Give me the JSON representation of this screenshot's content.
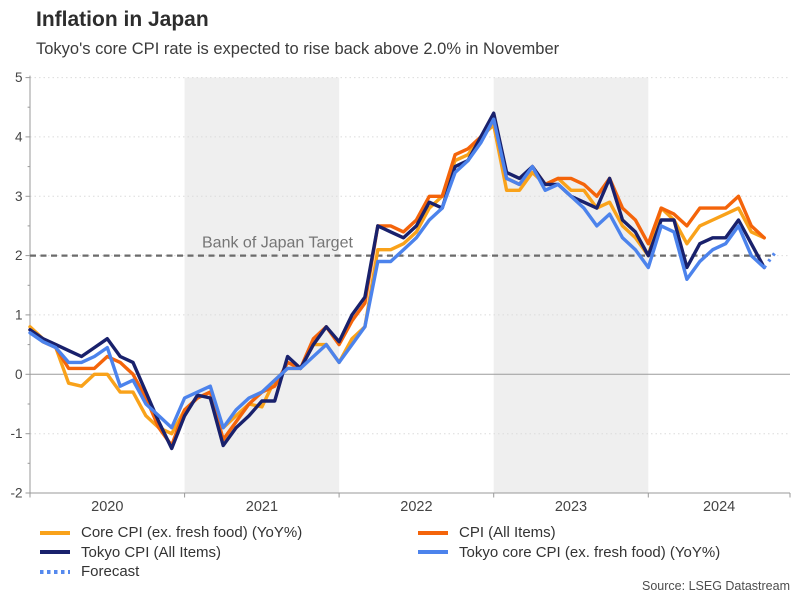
{
  "header": {
    "title": "Inflation in Japan",
    "subtitle": "Tokyo's core CPI rate is expected to rise back above 2.0% in November"
  },
  "source": "Source: LSEG Datastream",
  "legend": {
    "items": [
      {
        "label": "Core CPI (ex. fresh food) (YoY%)",
        "color": "#F9A21A",
        "style": "solid"
      },
      {
        "label": "CPI (All Items)",
        "color": "#F4640A",
        "style": "solid"
      },
      {
        "label": "Tokyo CPI (All Items)",
        "color": "#19216C",
        "style": "solid"
      },
      {
        "label": "Tokyo core CPI (ex. fresh food) (YoY%)",
        "color": "#4C83EC",
        "style": "solid"
      },
      {
        "label": "Forecast",
        "color": "#5589EE",
        "style": "dotted"
      }
    ]
  },
  "chart_data": {
    "type": "line",
    "title": "Inflation in Japan",
    "subtitle": "Tokyo's core CPI rate is expected to rise back above 2.0% in November",
    "x_unit": "month",
    "start_month": "2020-01",
    "x_axis": {
      "year_labels": [
        "2020",
        "2021",
        "2022",
        "2023",
        "2024"
      ],
      "year_tick_month_indices": [
        0,
        12,
        24,
        36,
        48,
        59
      ]
    },
    "y_axis": {
      "min": -2,
      "max": 5,
      "ticks": [
        5,
        4,
        3,
        2,
        1,
        0,
        -1,
        -2
      ],
      "minor_tick_step": 0.5
    },
    "shaded_bands_month_ranges": [
      [
        12,
        24
      ],
      [
        36,
        48
      ]
    ],
    "target_line": {
      "value": 2.0,
      "label": "Bank of Japan Target"
    },
    "series": [
      {
        "name": "Core CPI (ex. fresh food) (YoY%)",
        "color": "#F9A21A",
        "values": [
          0.8,
          0.6,
          0.45,
          -0.15,
          -0.2,
          0.0,
          0.0,
          -0.3,
          -0.3,
          -0.7,
          -0.9,
          -1.0,
          -0.6,
          -0.4,
          -0.3,
          -0.9,
          -0.7,
          -0.5,
          -0.55,
          -0.1,
          0.1,
          0.1,
          0.5,
          0.5,
          0.2,
          0.6,
          0.8,
          2.1,
          2.1,
          2.2,
          2.4,
          2.8,
          3.0,
          3.6,
          3.7,
          4.0,
          4.2,
          3.1,
          3.1,
          3.4,
          3.2,
          3.3,
          3.1,
          3.1,
          2.8,
          2.9,
          2.5,
          2.3,
          2.0,
          2.8,
          2.6,
          2.2,
          2.5,
          2.6,
          2.7,
          2.8,
          2.4,
          2.3
        ]
      },
      {
        "name": "CPI (All Items)",
        "color": "#F4640A",
        "values": [
          0.75,
          0.55,
          0.45,
          0.1,
          0.1,
          0.1,
          0.3,
          0.2,
          0.0,
          -0.4,
          -0.9,
          -1.2,
          -0.6,
          -0.4,
          -0.3,
          -1.1,
          -0.8,
          -0.5,
          -0.3,
          -0.2,
          0.2,
          0.1,
          0.6,
          0.8,
          0.5,
          0.9,
          1.2,
          2.5,
          2.5,
          2.4,
          2.6,
          3.0,
          3.0,
          3.7,
          3.8,
          4.0,
          4.3,
          3.3,
          3.2,
          3.5,
          3.2,
          3.3,
          3.3,
          3.2,
          3.0,
          3.3,
          2.8,
          2.6,
          2.2,
          2.8,
          2.7,
          2.5,
          2.8,
          2.8,
          2.8,
          3.0,
          2.5,
          2.3
        ]
      },
      {
        "name": "Tokyo CPI (All Items)",
        "color": "#19216C",
        "values": [
          0.75,
          0.6,
          0.5,
          0.4,
          0.3,
          0.45,
          0.6,
          0.3,
          0.2,
          -0.3,
          -0.8,
          -1.25,
          -0.7,
          -0.35,
          -0.4,
          -1.2,
          -0.9,
          -0.7,
          -0.45,
          -0.45,
          0.3,
          0.1,
          0.5,
          0.8,
          0.55,
          1.0,
          1.3,
          2.5,
          2.4,
          2.3,
          2.5,
          2.9,
          2.8,
          3.5,
          3.6,
          4.0,
          4.4,
          3.4,
          3.3,
          3.5,
          3.2,
          3.2,
          3.0,
          2.9,
          2.8,
          3.3,
          2.6,
          2.4,
          2.0,
          2.6,
          2.6,
          1.8,
          2.2,
          2.3,
          2.3,
          2.6,
          2.2,
          1.8
        ]
      },
      {
        "name": "Tokyo core CPI (ex. fresh food) (YoY%)",
        "color": "#4C83EC",
        "values": [
          0.7,
          0.55,
          0.45,
          0.2,
          0.2,
          0.3,
          0.45,
          -0.2,
          -0.1,
          -0.5,
          -0.7,
          -0.9,
          -0.4,
          -0.3,
          -0.2,
          -0.9,
          -0.6,
          -0.4,
          -0.3,
          -0.1,
          0.1,
          0.1,
          0.3,
          0.5,
          0.2,
          0.5,
          0.8,
          1.9,
          1.9,
          2.1,
          2.3,
          2.6,
          2.8,
          3.4,
          3.6,
          3.9,
          4.3,
          3.3,
          3.2,
          3.5,
          3.1,
          3.2,
          3.0,
          2.8,
          2.5,
          2.7,
          2.3,
          2.1,
          1.8,
          2.5,
          2.4,
          1.6,
          1.9,
          2.1,
          2.2,
          2.5,
          2.0,
          1.8
        ]
      }
    ],
    "forecast": {
      "name": "Forecast",
      "color": "#5589EE",
      "start_index": 57,
      "values": [
        1.8,
        2.1
      ]
    }
  }
}
